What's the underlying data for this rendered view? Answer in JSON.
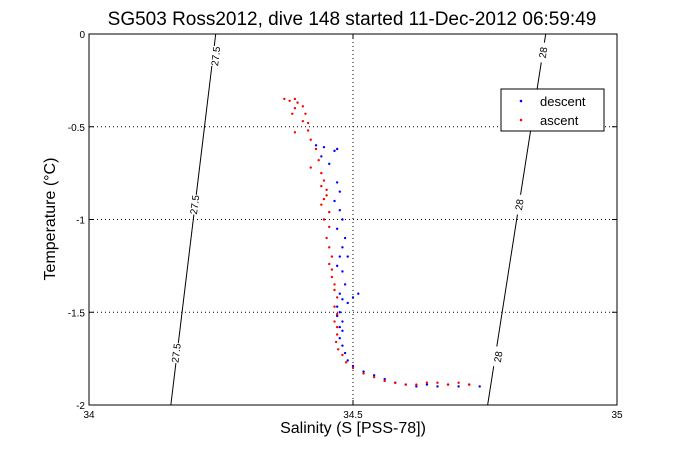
{
  "chart_data": {
    "type": "scatter",
    "title": "SG503 Ross2012, dive 148 started 11-Dec-2012 06:59:49",
    "xlabel": "Salinity (S [PSS-78])",
    "ylabel": "Temperature (°C)",
    "xlim": [
      34,
      35
    ],
    "ylim": [
      -2,
      0
    ],
    "xticks": [
      "34",
      "34.5",
      "35"
    ],
    "yticks": [
      "0",
      "-0.5",
      "-1",
      "-1.5",
      "-2"
    ],
    "grid": true,
    "legend_position": "top-right",
    "isopycnals": [
      {
        "label": "27.5",
        "start": [
          34.155,
          -2.0
        ],
        "end": [
          34.24,
          0.0
        ],
        "label_at": [
          [
            34.24,
            -0.12
          ],
          [
            34.2,
            -0.92
          ],
          [
            34.165,
            -1.72
          ]
        ]
      },
      {
        "label": "28",
        "start": [
          34.755,
          -2.0
        ],
        "end": [
          34.865,
          0.0
        ],
        "label_at": [
          [
            34.86,
            -0.1
          ],
          [
            34.815,
            -0.92
          ],
          [
            34.775,
            -1.74
          ]
        ]
      }
    ],
    "colors": {
      "descent": "#0000ff",
      "ascent": "#ff0000"
    },
    "series": [
      {
        "name": "descent",
        "points": [
          [
            34.43,
            -0.6
          ],
          [
            34.445,
            -0.61
          ],
          [
            34.465,
            -0.63
          ],
          [
            34.47,
            -0.62
          ],
          [
            34.44,
            -0.66
          ],
          [
            34.455,
            -0.7
          ],
          [
            34.47,
            -0.8
          ],
          [
            34.475,
            -0.85
          ],
          [
            34.465,
            -0.9
          ],
          [
            34.475,
            -0.95
          ],
          [
            34.48,
            -1.0
          ],
          [
            34.47,
            -1.05
          ],
          [
            34.485,
            -1.1
          ],
          [
            34.48,
            -1.15
          ],
          [
            34.475,
            -1.2
          ],
          [
            34.47,
            -1.25
          ],
          [
            34.48,
            -1.28
          ],
          [
            34.49,
            -1.2
          ],
          [
            34.485,
            -1.35
          ],
          [
            34.475,
            -1.4
          ],
          [
            34.48,
            -1.43
          ],
          [
            34.49,
            -1.45
          ],
          [
            34.5,
            -1.42
          ],
          [
            34.51,
            -1.4
          ],
          [
            34.47,
            -1.47
          ],
          [
            34.475,
            -1.5
          ],
          [
            34.47,
            -1.52
          ],
          [
            34.48,
            -1.55
          ],
          [
            34.475,
            -1.58
          ],
          [
            34.48,
            -1.6
          ],
          [
            34.475,
            -1.64
          ],
          [
            34.48,
            -1.68
          ],
          [
            34.485,
            -1.72
          ],
          [
            34.49,
            -1.76
          ],
          [
            34.5,
            -1.79
          ],
          [
            34.52,
            -1.82
          ],
          [
            34.54,
            -1.84
          ],
          [
            34.56,
            -1.86
          ],
          [
            34.58,
            -1.88
          ],
          [
            34.6,
            -1.89
          ],
          [
            34.62,
            -1.9
          ],
          [
            34.64,
            -1.89
          ],
          [
            34.66,
            -1.9
          ],
          [
            34.68,
            -1.89
          ],
          [
            34.7,
            -1.9
          ],
          [
            34.72,
            -1.89
          ],
          [
            34.74,
            -1.9
          ]
        ]
      },
      {
        "name": "ascent",
        "points": [
          [
            34.37,
            -0.35
          ],
          [
            34.38,
            -0.36
          ],
          [
            34.39,
            -0.35
          ],
          [
            34.395,
            -0.37
          ],
          [
            34.39,
            -0.4
          ],
          [
            34.385,
            -0.43
          ],
          [
            34.405,
            -0.39
          ],
          [
            34.41,
            -0.43
          ],
          [
            34.405,
            -0.47
          ],
          [
            34.415,
            -0.48
          ],
          [
            34.39,
            -0.53
          ],
          [
            34.415,
            -0.52
          ],
          [
            34.42,
            -0.57
          ],
          [
            34.43,
            -0.62
          ],
          [
            34.435,
            -0.68
          ],
          [
            34.42,
            -0.72
          ],
          [
            34.44,
            -0.75
          ],
          [
            34.445,
            -0.79
          ],
          [
            34.44,
            -0.82
          ],
          [
            34.45,
            -0.84
          ],
          [
            34.45,
            -0.87
          ],
          [
            34.445,
            -0.89
          ],
          [
            34.44,
            -0.92
          ],
          [
            34.455,
            -0.96
          ],
          [
            34.445,
            -1.0
          ],
          [
            34.455,
            -1.04
          ],
          [
            34.45,
            -1.1
          ],
          [
            34.455,
            -1.15
          ],
          [
            34.46,
            -1.2
          ],
          [
            34.455,
            -1.24
          ],
          [
            34.46,
            -1.27
          ],
          [
            34.46,
            -1.31
          ],
          [
            34.465,
            -1.35
          ],
          [
            34.465,
            -1.38
          ],
          [
            34.47,
            -1.42
          ],
          [
            34.465,
            -1.47
          ],
          [
            34.47,
            -1.51
          ],
          [
            34.465,
            -1.55
          ],
          [
            34.47,
            -1.58
          ],
          [
            34.47,
            -1.62
          ],
          [
            34.468,
            -1.66
          ],
          [
            34.472,
            -1.7
          ],
          [
            34.48,
            -1.73
          ],
          [
            34.487,
            -1.77
          ],
          [
            34.5,
            -1.8
          ],
          [
            34.52,
            -1.83
          ],
          [
            34.54,
            -1.85
          ],
          [
            34.56,
            -1.87
          ],
          [
            34.58,
            -1.88
          ],
          [
            34.6,
            -1.89
          ],
          [
            34.62,
            -1.89
          ],
          [
            34.64,
            -1.88
          ],
          [
            34.66,
            -1.88
          ],
          [
            34.68,
            -1.89
          ],
          [
            34.7,
            -1.88
          ],
          [
            34.72,
            -1.89
          ]
        ]
      }
    ]
  }
}
